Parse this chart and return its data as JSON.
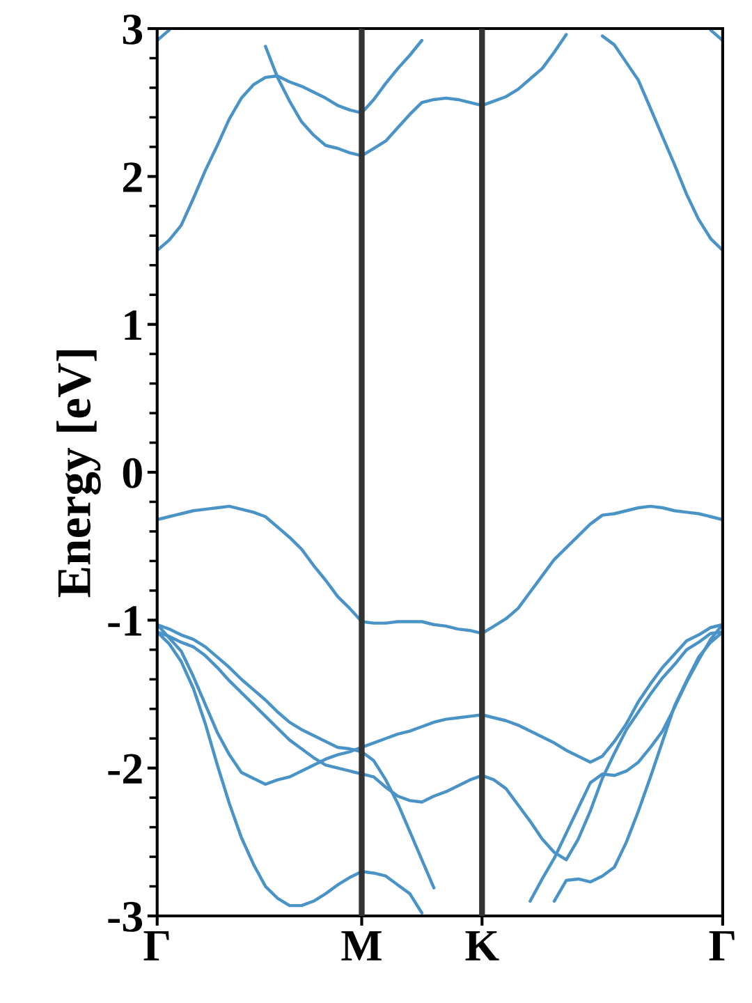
{
  "chart_data": {
    "type": "line",
    "ylabel": "Energy [eV]",
    "categories": [
      "Γ",
      null,
      null,
      null,
      null,
      null,
      null,
      null,
      null,
      null,
      null,
      null,
      null,
      null,
      null,
      null,
      null,
      "M",
      null,
      null,
      null,
      null,
      null,
      null,
      null,
      null,
      null,
      "K",
      null,
      null,
      null,
      null,
      null,
      null,
      null,
      null,
      null,
      null,
      null,
      null,
      null,
      null,
      null,
      null,
      null,
      null,
      null,
      "Γ"
    ],
    "ylim": [
      -3,
      3
    ],
    "yticks": [
      -3,
      {
        "value": -2.8,
        "label": null
      },
      {
        "value": -2.6,
        "label": null
      },
      {
        "value": -2.4,
        "label": null
      },
      {
        "value": -2.2,
        "label": null
      },
      -2,
      {
        "value": -1.8,
        "label": null
      },
      {
        "value": -1.6,
        "label": null
      },
      {
        "value": -1.4,
        "label": null
      },
      {
        "value": -1.2,
        "label": null
      },
      -1,
      {
        "value": -0.8,
        "label": null
      },
      {
        "value": -0.6,
        "label": null
      },
      {
        "value": -0.4,
        "label": null
      },
      {
        "value": -0.2,
        "label": null
      },
      0,
      {
        "value": 0.2,
        "label": null
      },
      {
        "value": 0.4,
        "label": null
      },
      {
        "value": 0.6,
        "label": null
      },
      {
        "value": 0.8,
        "label": null
      },
      1,
      {
        "value": 1.2,
        "label": null
      },
      {
        "value": 1.4,
        "label": null
      },
      {
        "value": 1.6,
        "label": null
      },
      {
        "value": 1.8,
        "label": null
      },
      2,
      {
        "value": 2.2,
        "label": null
      },
      {
        "value": 2.4,
        "label": null
      },
      {
        "value": 2.6,
        "label": null
      },
      {
        "value": 2.8,
        "label": null
      },
      3
    ],
    "grid": false,
    "marker": "none",
    "line_style": "solid",
    "ref_lines": [
      {
        "axis": "x",
        "value": "M",
        "color": "#333333"
      },
      {
        "axis": "x",
        "value": "K",
        "color": "#333333"
      }
    ],
    "series": [
      {
        "color": "#4a93c6",
        "values": [
          1.5,
          1.57,
          1.67,
          1.85,
          2.04,
          2.21,
          2.39,
          2.53,
          2.62,
          2.67,
          2.68,
          2.64,
          2.61,
          2.57,
          2.53,
          2.48,
          2.45,
          2.43,
          2.52,
          2.63,
          2.73,
          2.82,
          2.92,
          null,
          null,
          null,
          null,
          null,
          null,
          null,
          null,
          null,
          null,
          null,
          null,
          null,
          null,
          null,
          null,
          null,
          null,
          null,
          null,
          null,
          null,
          null,
          null,
          null
        ]
      },
      {
        "color": "#4a93c6",
        "values": [
          null,
          null,
          null,
          null,
          null,
          null,
          null,
          null,
          null,
          2.88,
          2.67,
          2.51,
          2.37,
          2.28,
          2.21,
          2.19,
          2.16,
          2.14,
          2.19,
          2.24,
          2.33,
          2.42,
          2.5,
          2.52,
          2.53,
          2.52,
          2.5,
          2.48,
          2.51,
          2.54,
          2.59,
          2.66,
          2.73,
          2.84,
          2.96,
          null,
          null,
          null,
          null,
          null,
          null,
          null,
          null,
          null,
          null,
          null,
          null,
          null
        ]
      },
      {
        "color": "#4a93c6",
        "values": [
          null,
          null,
          null,
          null,
          null,
          null,
          null,
          null,
          null,
          null,
          null,
          null,
          null,
          null,
          null,
          null,
          null,
          null,
          null,
          null,
          null,
          null,
          null,
          null,
          null,
          null,
          null,
          null,
          null,
          null,
          null,
          null,
          null,
          null,
          null,
          null,
          null,
          2.95,
          2.89,
          2.77,
          2.65,
          2.46,
          2.27,
          2.08,
          1.88,
          1.71,
          1.58,
          1.5
        ]
      },
      {
        "color": "#4a93c6",
        "values": [
          2.92,
          2.99,
          null,
          null,
          null,
          null,
          null,
          null,
          null,
          null,
          null,
          null,
          null,
          null,
          null,
          null,
          null,
          null,
          null,
          null,
          null,
          null,
          null,
          null,
          null,
          null,
          null,
          null,
          null,
          null,
          null,
          null,
          null,
          null,
          null,
          null,
          null,
          null,
          null,
          null,
          null,
          null,
          null,
          null,
          null,
          null,
          null,
          null
        ]
      },
      {
        "color": "#4a93c6",
        "values": [
          null,
          null,
          null,
          null,
          null,
          null,
          null,
          null,
          null,
          null,
          null,
          null,
          null,
          null,
          null,
          null,
          null,
          null,
          null,
          null,
          null,
          null,
          null,
          null,
          null,
          null,
          null,
          null,
          null,
          null,
          null,
          null,
          null,
          null,
          null,
          null,
          null,
          null,
          null,
          null,
          null,
          null,
          null,
          null,
          null,
          null,
          2.99,
          2.92
        ]
      },
      {
        "color": "#4a93c6",
        "values": [
          -0.32,
          -0.3,
          -0.28,
          -0.26,
          -0.25,
          -0.24,
          -0.23,
          -0.25,
          -0.27,
          -0.3,
          -0.37,
          -0.44,
          -0.52,
          -0.63,
          -0.73,
          -0.84,
          -0.92,
          -1.01,
          -1.02,
          -1.02,
          -1.01,
          -1.01,
          -1.01,
          -1.03,
          -1.04,
          -1.06,
          -1.07,
          -1.09,
          -1.04,
          -0.99,
          -0.92,
          -0.81,
          -0.7,
          -0.59,
          -0.51,
          -0.43,
          -0.35,
          -0.29,
          -0.28,
          -0.26,
          -0.24,
          -0.23,
          -0.24,
          -0.26,
          -0.27,
          -0.28,
          -0.3,
          -0.32
        ]
      },
      {
        "color": "#4a93c6",
        "values": [
          -1.03,
          -1.06,
          -1.1,
          -1.13,
          -1.18,
          -1.25,
          -1.32,
          -1.4,
          -1.47,
          -1.54,
          -1.62,
          -1.69,
          -1.74,
          -1.78,
          -1.82,
          -1.86,
          -1.87,
          -1.89,
          -1.95,
          -2.08,
          -2.24,
          -2.43,
          -2.62,
          -2.81,
          null,
          null,
          null,
          null,
          null,
          null,
          null,
          null,
          null,
          null,
          null,
          null,
          null,
          null,
          null,
          null,
          null,
          null,
          null,
          null,
          null,
          null,
          null,
          null
        ]
      },
      {
        "color": "#4a93c6",
        "values": [
          -1.08,
          -1.11,
          -1.15,
          -1.18,
          -1.24,
          -1.32,
          -1.41,
          -1.49,
          -1.57,
          -1.65,
          -1.73,
          -1.81,
          -1.87,
          -1.93,
          -1.98,
          -2.0,
          -2.02,
          -2.04,
          -2.06,
          -2.13,
          -2.19,
          -2.22,
          -2.23,
          -2.19,
          -2.16,
          -2.12,
          -2.08,
          -2.05,
          -2.08,
          -2.14,
          -2.25,
          -2.36,
          -2.48,
          -2.57,
          -2.62,
          -2.48,
          -2.29,
          -2.07,
          -1.9,
          -1.74,
          -1.62,
          -1.5,
          -1.39,
          -1.3,
          -1.2,
          -1.15,
          -1.09,
          -1.08
        ]
      },
      {
        "color": "#4a93c6",
        "values": [
          -1.03,
          -1.12,
          -1.21,
          -1.38,
          -1.57,
          -1.76,
          -1.91,
          -2.03,
          -2.07,
          -2.11,
          -2.08,
          -2.06,
          -2.02,
          -1.98,
          -1.94,
          -1.91,
          -1.89,
          -1.86,
          -1.83,
          -1.8,
          -1.77,
          -1.75,
          -1.72,
          -1.69,
          -1.67,
          -1.66,
          -1.65,
          -1.64,
          -1.66,
          -1.68,
          -1.71,
          -1.75,
          -1.79,
          -1.83,
          -1.88,
          -1.92,
          -1.96,
          -1.92,
          -1.82,
          -1.7,
          -1.55,
          -1.43,
          -1.32,
          -1.23,
          -1.14,
          -1.1,
          -1.05,
          -1.03
        ]
      },
      {
        "color": "#4a93c6",
        "values": [
          -1.08,
          -1.16,
          -1.28,
          -1.46,
          -1.7,
          -1.98,
          -2.24,
          -2.47,
          -2.65,
          -2.8,
          -2.88,
          -2.93,
          -2.93,
          -2.9,
          -2.85,
          -2.79,
          -2.74,
          -2.7,
          -2.71,
          -2.73,
          -2.79,
          -2.85,
          -2.98,
          null,
          null,
          null,
          null,
          null,
          null,
          null,
          null,
          null,
          null,
          null,
          null,
          null,
          null,
          null,
          null,
          null,
          null,
          null,
          null,
          null,
          null,
          null,
          null,
          null
        ]
      },
      {
        "color": "#4a93c6",
        "values": [
          null,
          null,
          null,
          null,
          null,
          null,
          null,
          null,
          null,
          null,
          null,
          null,
          null,
          null,
          null,
          null,
          null,
          null,
          null,
          null,
          null,
          null,
          null,
          null,
          null,
          null,
          null,
          null,
          null,
          null,
          null,
          -2.9,
          -2.75,
          -2.61,
          -2.44,
          -2.27,
          -2.1,
          -2.04,
          -2.05,
          -2.02,
          -1.96,
          -1.86,
          -1.75,
          -1.59,
          -1.42,
          -1.27,
          -1.13,
          -1.03
        ]
      },
      {
        "color": "#4a93c6",
        "values": [
          null,
          null,
          null,
          null,
          null,
          null,
          null,
          null,
          null,
          null,
          null,
          null,
          null,
          null,
          null,
          null,
          null,
          null,
          null,
          null,
          null,
          null,
          null,
          null,
          null,
          null,
          null,
          null,
          null,
          null,
          null,
          null,
          null,
          -2.9,
          -2.76,
          -2.75,
          -2.77,
          -2.73,
          -2.67,
          -2.5,
          -2.29,
          -2.06,
          -1.82,
          -1.58,
          -1.41,
          -1.25,
          -1.15,
          -1.08
        ]
      }
    ]
  }
}
